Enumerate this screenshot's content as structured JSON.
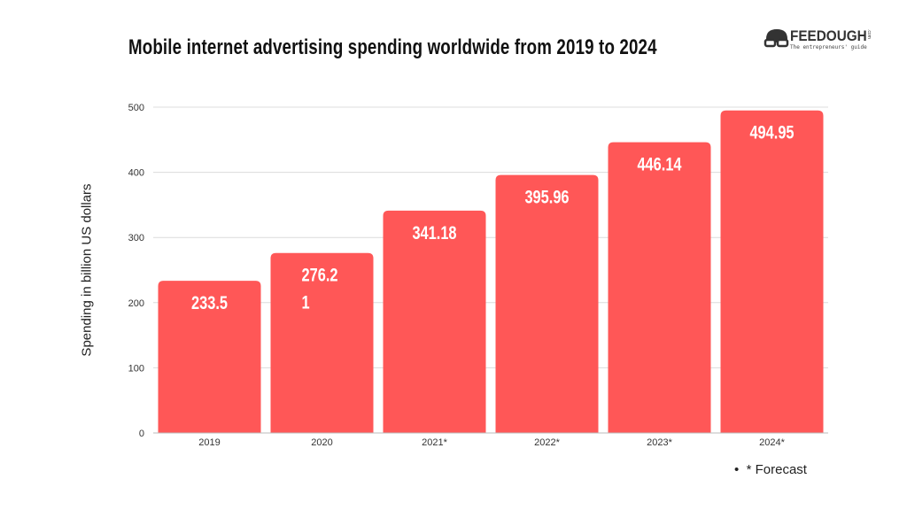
{
  "chart_data": {
    "type": "bar",
    "title": "Mobile internet advertising spending worldwide from 2019 to 2024",
    "xlabel": "",
    "ylabel": "Spending in billion US dollars",
    "categories": [
      "2019",
      "2020",
      "2021*",
      "2022*",
      "2023*",
      "2024*"
    ],
    "values": [
      233.5,
      276.21,
      341.18,
      395.96,
      446.14,
      494.95
    ],
    "data_labels": [
      "233.5",
      "276.2\n1",
      "341.18",
      "395.96",
      "446.14",
      "494.95"
    ],
    "ylim": [
      0,
      500
    ],
    "yticks": [
      0,
      100,
      200,
      300,
      400,
      500
    ],
    "grid": true,
    "bar_color": "#ff5757",
    "legend": {
      "position": "bottom-right",
      "entries": [
        "* Forecast"
      ]
    }
  },
  "logo": {
    "name": "FEEDOUGH",
    "tagline": "The entrepreneurs' guide",
    "suffix": ".com"
  }
}
